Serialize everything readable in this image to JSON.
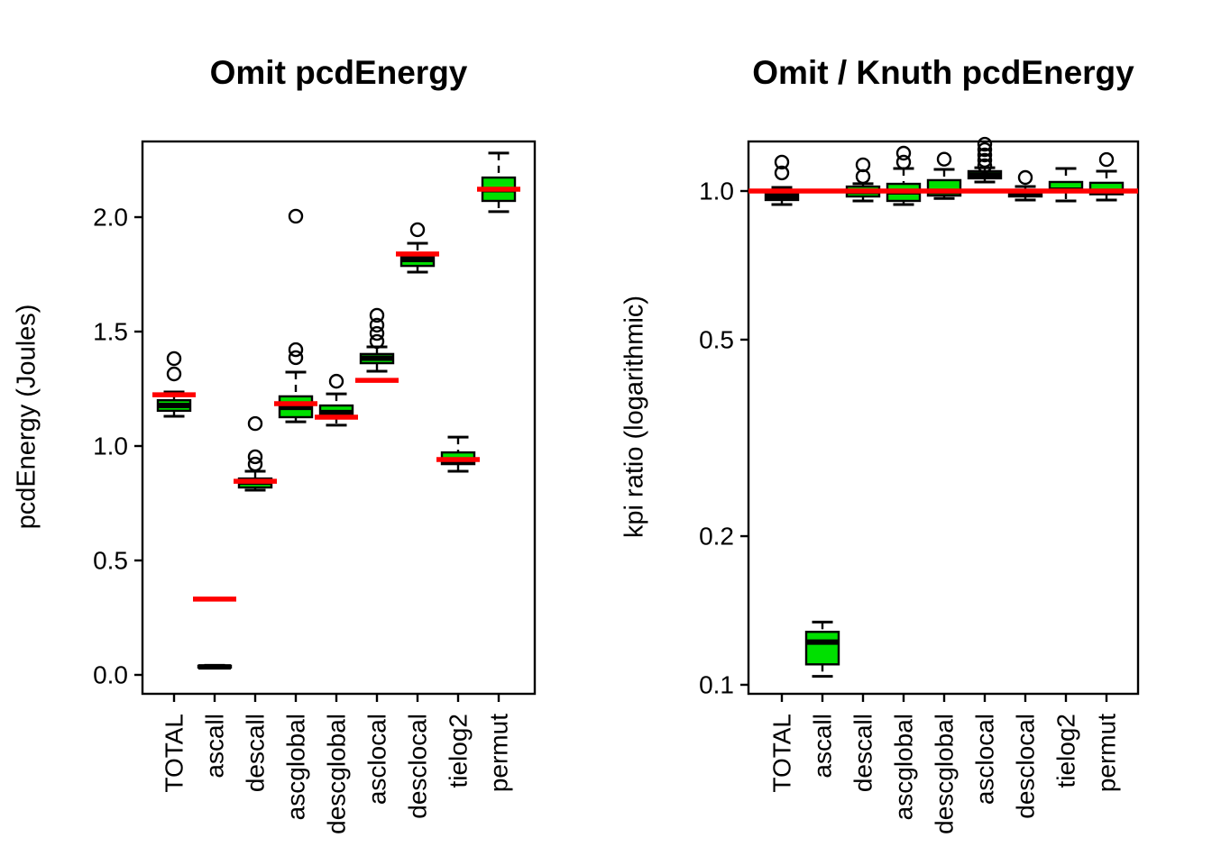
{
  "figure": {
    "background": "#ffffff",
    "colors": {
      "box_fill": "#00e000",
      "box_border": "#000000",
      "median": "#000000",
      "mean_marker": "#ff0000",
      "reference_line": "#ff0000",
      "axis": "#000000",
      "outlier_stroke": "#000000"
    }
  },
  "chart_data": [
    {
      "type": "boxplot",
      "title": "Omit pcdEnergy",
      "ylabel": "pcdEnergy (Joules)",
      "xlabel": "",
      "yscale": "linear",
      "ylim": [
        -0.08,
        2.33
      ],
      "yticks": [
        0.0,
        0.5,
        1.0,
        1.5,
        2.0
      ],
      "ytick_labels": [
        "0.0",
        "0.5",
        "1.0",
        "1.5",
        "2.0"
      ],
      "grid": false,
      "legend": null,
      "mean_markers": true,
      "reference_line": null,
      "categories": [
        "TOTAL",
        "ascall",
        "descall",
        "ascglobal",
        "descglobal",
        "asclocal",
        "desclocal",
        "tielog2",
        "permut"
      ],
      "boxes": [
        {
          "category": "TOTAL",
          "low": 1.13,
          "q1": 1.154,
          "median": 1.177,
          "q3": 1.2,
          "high": 1.236,
          "mean": 1.224,
          "outliers": [
            1.315,
            1.382
          ]
        },
        {
          "category": "ascall",
          "low": 0.03,
          "q1": 0.032,
          "median": 0.035,
          "q3": 0.04,
          "high": 0.042,
          "mean": 0.331,
          "outliers": []
        },
        {
          "category": "descall",
          "low": 0.807,
          "q1": 0.819,
          "median": 0.842,
          "q3": 0.858,
          "high": 0.89,
          "mean": 0.846,
          "outliers": [
            0.921,
            0.953,
            1.098
          ]
        },
        {
          "category": "ascglobal",
          "low": 1.106,
          "q1": 1.126,
          "median": 1.169,
          "q3": 1.217,
          "high": 1.323,
          "mean": 1.185,
          "outliers": [
            1.386,
            1.421,
            2.004
          ]
        },
        {
          "category": "descglobal",
          "low": 1.091,
          "q1": 1.13,
          "median": 1.146,
          "q3": 1.177,
          "high": 1.228,
          "mean": 1.126,
          "outliers": [
            1.283
          ]
        },
        {
          "category": "asclocal",
          "low": 1.327,
          "q1": 1.362,
          "median": 1.384,
          "q3": 1.402,
          "high": 1.433,
          "mean": 1.287,
          "outliers": [
            1.457,
            1.492,
            1.528,
            1.571
          ]
        },
        {
          "category": "desclocal",
          "low": 1.76,
          "q1": 1.787,
          "median": 1.815,
          "q3": 1.827,
          "high": 1.886,
          "mean": 1.839,
          "outliers": [
            1.945
          ]
        },
        {
          "category": "tielog2",
          "low": 0.89,
          "q1": 0.921,
          "median": 0.929,
          "q3": 0.972,
          "high": 1.039,
          "mean": 0.941,
          "outliers": []
        },
        {
          "category": "permut",
          "low": 2.024,
          "q1": 2.071,
          "median": 2.12,
          "q3": 2.173,
          "high": 2.28,
          "mean": 2.122,
          "outliers": []
        }
      ]
    },
    {
      "type": "boxplot",
      "title": "Omit / Knuth pcdEnergy",
      "ylabel": "kpi ratio (logarithmic)",
      "xlabel": "",
      "yscale": "log",
      "ylim": [
        0.096,
        1.28
      ],
      "yticks": [
        0.1,
        0.2,
        0.5,
        1.0
      ],
      "ytick_labels": [
        "0.1",
        "0.2",
        "0.5",
        "1.0"
      ],
      "grid": false,
      "legend": null,
      "mean_markers": false,
      "reference_line": {
        "value": 1.0,
        "color": "#ff0000"
      },
      "categories": [
        "TOTAL",
        "ascall",
        "descall",
        "ascglobal",
        "descglobal",
        "asclocal",
        "desclocal",
        "tielog2",
        "permut"
      ],
      "boxes": [
        {
          "category": "TOTAL",
          "low": 0.939,
          "q1": 0.959,
          "median": 0.975,
          "q3": 0.992,
          "high": 1.017,
          "outliers": [
            1.088,
            1.144
          ]
        },
        {
          "category": "ascall",
          "low": 0.104,
          "q1": 0.11,
          "median": 0.122,
          "q3": 0.128,
          "high": 0.134,
          "outliers": []
        },
        {
          "category": "descall",
          "low": 0.955,
          "q1": 0.975,
          "median": 0.998,
          "q3": 1.021,
          "high": 1.035,
          "outliers": [
            1.07,
            1.13
          ]
        },
        {
          "category": "ascglobal",
          "low": 0.939,
          "q1": 0.955,
          "median": 0.996,
          "q3": 1.034,
          "high": 1.111,
          "outliers": [
            1.144,
            1.193
          ]
        },
        {
          "category": "descglobal",
          "low": 0.966,
          "q1": 0.979,
          "median": 0.998,
          "q3": 1.052,
          "high": 1.106,
          "outliers": [
            1.16
          ]
        },
        {
          "category": "asclocal",
          "low": 1.043,
          "q1": 1.061,
          "median": 1.078,
          "q3": 1.097,
          "high": 1.115,
          "outliers": [
            1.125,
            1.154,
            1.183,
            1.213,
            1.244
          ]
        },
        {
          "category": "desclocal",
          "low": 0.959,
          "q1": 0.975,
          "median": 0.988,
          "q3": 1.0,
          "high": 1.021,
          "outliers": [
            1.065
          ]
        },
        {
          "category": "tielog2",
          "low": 0.955,
          "q1": 0.996,
          "median": 1.004,
          "q3": 1.043,
          "high": 1.111,
          "outliers": []
        },
        {
          "category": "permut",
          "low": 0.959,
          "q1": 0.985,
          "median": 0.998,
          "q3": 1.039,
          "high": 1.097,
          "outliers": [
            1.158
          ]
        }
      ]
    }
  ]
}
